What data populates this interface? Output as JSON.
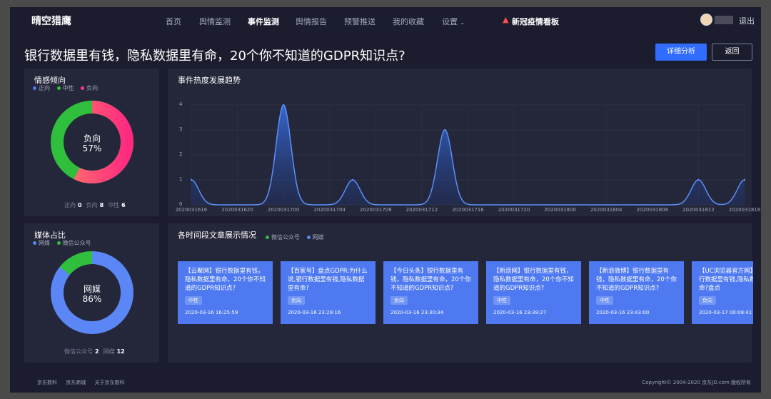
{
  "nav": {
    "logo": "晴空猎鹰",
    "items": [
      "首页",
      "舆情监测",
      "事件监测",
      "舆情报告",
      "预警推送",
      "我的收藏",
      "设置"
    ],
    "dashboard": "新冠疫情看板",
    "logout": "退出"
  },
  "page": {
    "title": "银行数据里有钱，隐私数据里有命，20个你不知道的GDPR知识点?",
    "detail_button": "详细分析",
    "back_button": "返回"
  },
  "sentiment": {
    "title": "情感倾向",
    "legend": [
      "正向",
      "中性",
      "负向"
    ],
    "center_label": "负向",
    "center_value": "57%",
    "values": {
      "正向": 0,
      "负向": 8,
      "中性": 6
    },
    "colors": {
      "正向": "#4e79f0",
      "中性": "#2fbf3c",
      "负向": "#ff3d7f"
    }
  },
  "media": {
    "title": "媒体占比",
    "legend": [
      "网媒",
      "微信公众号"
    ],
    "center_label": "网媒",
    "center_value": "86%",
    "values": {
      "微信公众号": 2,
      "网媒": 12
    },
    "colors": {
      "网媒": "#5b86f5",
      "微信公众号": "#2fbf3c"
    }
  },
  "trend": {
    "title": "事件热度发展趋势"
  },
  "chart_data": {
    "type": "area",
    "title": "事件热度发展趋势",
    "x": [
      "2020031616",
      "2020031618",
      "2020031620",
      "2020031622",
      "2020031700",
      "2020031702",
      "2020031704",
      "2020031706",
      "2020031708",
      "2020031710",
      "2020031712",
      "2020031714",
      "2020031716",
      "2020031718",
      "2020031720",
      "2020031722",
      "2020031800",
      "2020031802",
      "2020031804",
      "2020031806",
      "2020031808",
      "2020031810",
      "2020031812",
      "2020031814",
      "2020031816"
    ],
    "x_tick_labels": [
      "2020031616",
      "2020031620",
      "2020031700",
      "2020031704",
      "2020031708",
      "2020031712",
      "2020031716",
      "2020031720",
      "2020031800",
      "2020031804",
      "2020031808",
      "2020031812",
      "2020031816"
    ],
    "series": [
      {
        "values": [
          1,
          0,
          0,
          0,
          4,
          0,
          0,
          1,
          0,
          0,
          0,
          3,
          0,
          0,
          0,
          0,
          0,
          0,
          0,
          0,
          0,
          0,
          1,
          0,
          1
        ]
      }
    ],
    "ylim": [
      0,
      4
    ],
    "y_ticks": [
      0,
      1,
      2,
      3,
      4
    ],
    "grid": true,
    "color": "#5b8ff9"
  },
  "articles": {
    "title": "各时间段文章展示情况",
    "legend": [
      "微信公众号",
      "网媒"
    ],
    "cards": [
      {
        "text": "【云聚网】银行数据里有钱，隐私数据里有命，20个你不知道的GDPR知识点?",
        "tag": "中性",
        "time": "2020-03-16 16:25:59"
      },
      {
        "text": "【百家号】盘点GDPR:为什么说,银行数据里有钱,隐私数据里有命?",
        "tag": "负向",
        "time": "2020-03-16 23:29:16"
      },
      {
        "text": "【今日头条】银行数据里有钱，隐私数据里有命，20个你不知道的GDPR知识点?",
        "tag": "负向",
        "time": "2020-03-16 23:30:34"
      },
      {
        "text": "【新浪网】银行数据里有钱，隐私数据里有命，20个你不知道的GDPR知识点?",
        "tag": "中性",
        "time": "2020-03-16 23:39:27"
      },
      {
        "text": "【新浪微博】银行数据里有钱，隐私数据里有命，20个你不知道的GDPR知识点?",
        "tag": "中性",
        "time": "2020-03-16 23:43:00"
      },
      {
        "text": "【UC浏览器官方网】么说,银行数据里有钱,隐私数据里有命?盘点",
        "tag": "负向",
        "time": "2020-03-17 00:08:41"
      }
    ]
  },
  "footer": {
    "links": [
      "京东数科",
      "京东商城",
      "关于京东数科"
    ],
    "copyright": "Copyright© 2004-2020 京东JD.com 版权所有"
  }
}
